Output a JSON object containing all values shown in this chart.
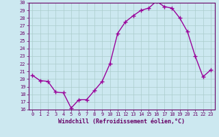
{
  "x": [
    0,
    1,
    2,
    3,
    4,
    5,
    6,
    7,
    8,
    9,
    10,
    11,
    12,
    13,
    14,
    15,
    16,
    17,
    18,
    19,
    20,
    21,
    22,
    23
  ],
  "y": [
    20.5,
    19.8,
    19.7,
    18.3,
    18.2,
    16.2,
    17.3,
    17.3,
    18.5,
    19.7,
    22.0,
    26.0,
    27.5,
    28.3,
    29.0,
    29.3,
    30.2,
    29.5,
    29.3,
    28.0,
    26.2,
    23.0,
    20.3,
    21.2
  ],
  "line_color": "#990099",
  "marker": "+",
  "markersize": 4,
  "linewidth": 1.0,
  "markeredgewidth": 1.0,
  "bg_color": "#cce8f0",
  "grid_color": "#aacccc",
  "xlabel": "Windchill (Refroidissement éolien,°C)",
  "ylim": [
    16,
    30
  ],
  "xlim": [
    -0.5,
    23.5
  ],
  "yticks": [
    16,
    17,
    18,
    19,
    20,
    21,
    22,
    23,
    24,
    25,
    26,
    27,
    28,
    29,
    30
  ],
  "xticks": [
    0,
    1,
    2,
    3,
    4,
    5,
    6,
    7,
    8,
    9,
    10,
    11,
    12,
    13,
    14,
    15,
    16,
    17,
    18,
    19,
    20,
    21,
    22,
    23
  ],
  "tick_fontsize": 5.0,
  "xlabel_fontsize": 6.0,
  "axis_color": "#660066",
  "spine_color": "#660066"
}
